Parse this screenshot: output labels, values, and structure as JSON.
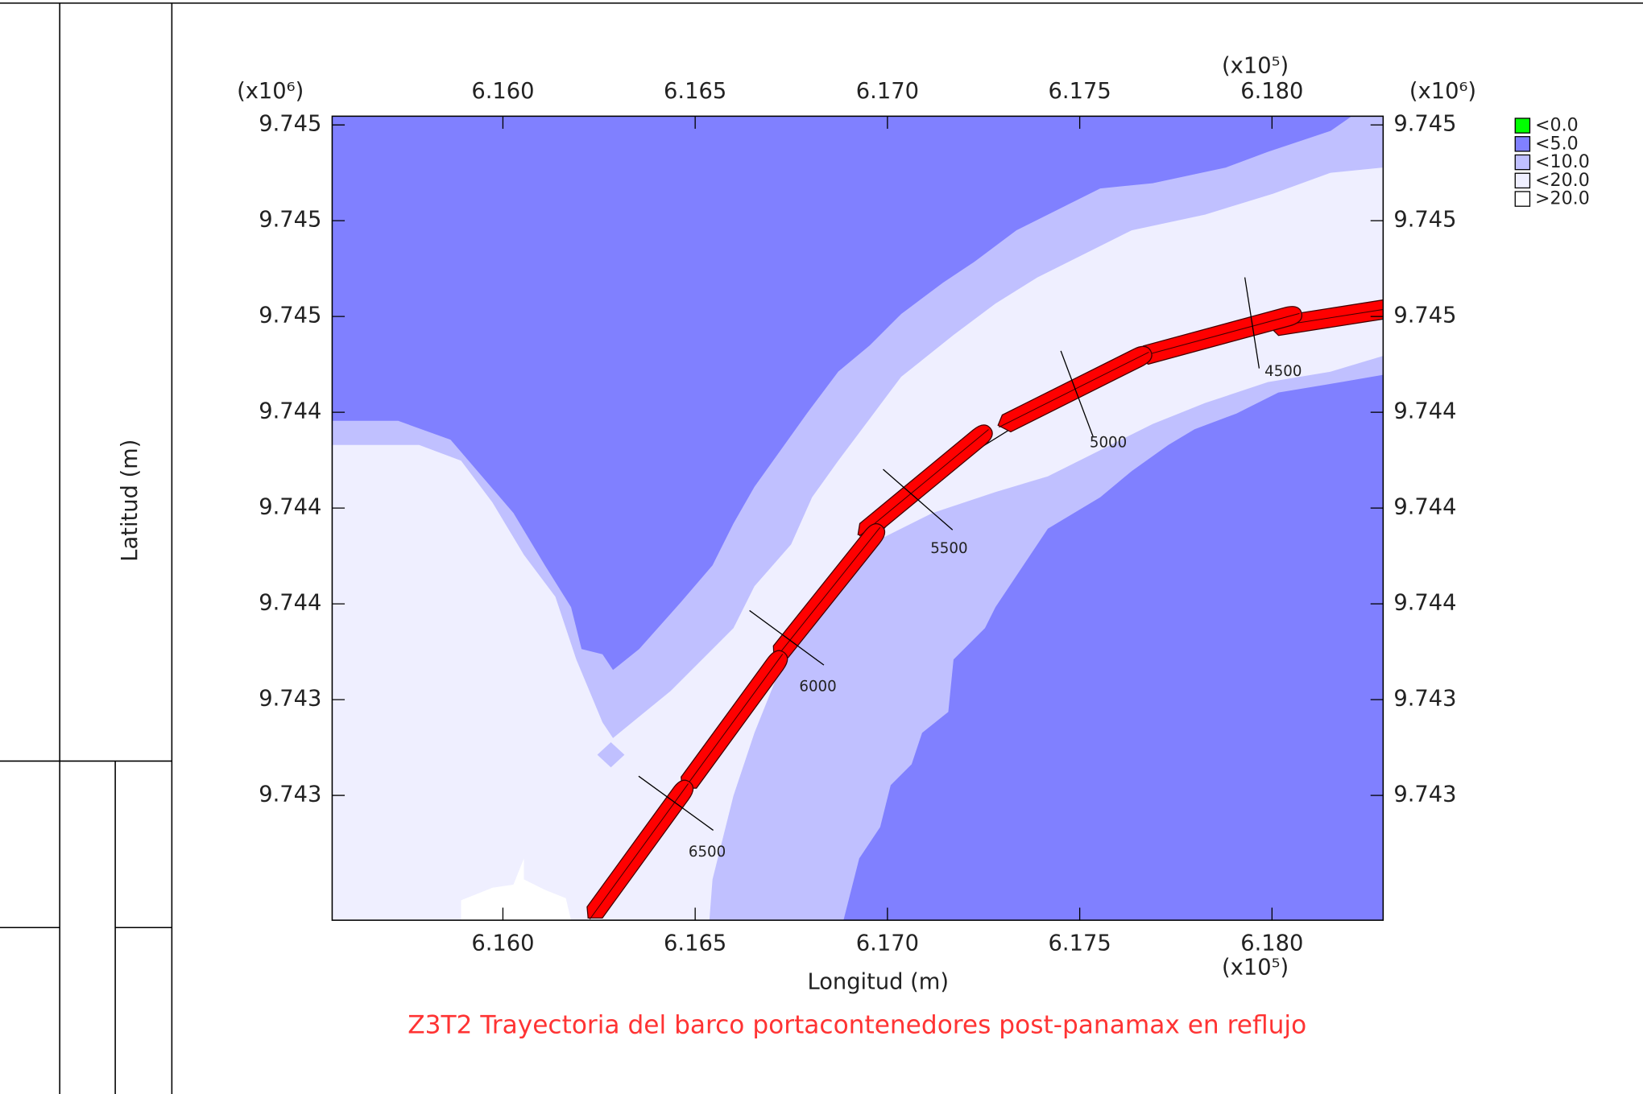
{
  "chart_data": {
    "type": "contour",
    "title": "Z3T2 Trayectoria del barco portacontenedores post-panamax en reflujo",
    "xlabel": "Longitud (m)",
    "ylabel": "Latitud (m)",
    "x_scale": "(x10⁵)",
    "y_scale": "(x10⁶)",
    "xlim": [
      6.15556,
      6.18289
    ],
    "ylim": [
      9.74246,
      9.74523
    ],
    "xticks": [
      {
        "value": 6.16,
        "label": "6.160"
      },
      {
        "value": 6.165,
        "label": "6.165"
      },
      {
        "value": 6.17,
        "label": "6.170"
      },
      {
        "value": 6.175,
        "label": "6.175"
      },
      {
        "value": 6.18,
        "label": "6.180"
      }
    ],
    "yticks": [
      {
        "value": 9.7452,
        "label": "9.745"
      },
      {
        "value": 9.74487,
        "label": "9.745"
      },
      {
        "value": 9.74454,
        "label": "9.745"
      },
      {
        "value": 9.74421,
        "label": "9.744"
      },
      {
        "value": 9.74388,
        "label": "9.744"
      },
      {
        "value": 9.74355,
        "label": "9.744"
      },
      {
        "value": 9.74322,
        "label": "9.743"
      },
      {
        "value": 9.74289,
        "label": "9.743"
      }
    ],
    "legend": {
      "labels": [
        "<0.0",
        "<5.0",
        "<10.0",
        "<20.0",
        ">20.0"
      ],
      "colors": [
        "#00ff00",
        "#8080ff",
        "#c0c0ff",
        "#efefff",
        "#ffffff"
      ]
    },
    "ships": {
      "color": "#ff0000",
      "x": [
        6.18207,
        6.17861,
        6.17485,
        6.17095,
        6.16845,
        6.16599,
        6.16354
      ],
      "y": [
        9.744547,
        9.744475,
        9.744288,
        9.743967,
        9.743588,
        9.743144,
        9.742697
      ]
    },
    "stations": {
      "labels": [
        4500,
        5000,
        5500,
        6000,
        6500
      ],
      "x": [
        6.17948,
        6.17493,
        6.17079,
        6.16738,
        6.1645
      ],
      "y": [
        9.744518,
        9.744273,
        9.743909,
        9.743433,
        9.742863
      ]
    }
  }
}
